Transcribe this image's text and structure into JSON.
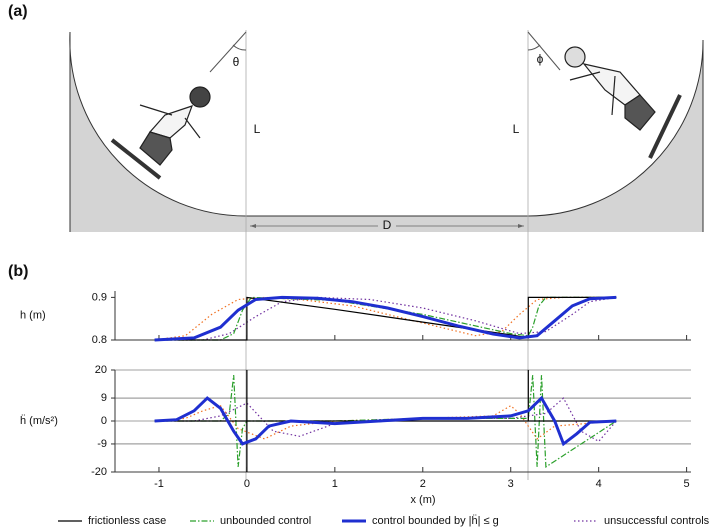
{
  "panel_labels": [
    "(a)",
    "(b)"
  ],
  "diagram": {
    "angle_left": "θ",
    "angle_right": "ϕ",
    "length_left": "L",
    "length_right": "L",
    "distance": "D"
  },
  "chart_data": [
    {
      "type": "line",
      "ylabel": "h (m)",
      "xlim": [
        -1.5,
        5.05
      ],
      "ylim": [
        0.8,
        0.915
      ],
      "yticks": [
        0.8,
        0.9
      ],
      "xticks": [
        -1,
        0,
        1,
        2,
        3,
        4,
        5
      ],
      "grid": false,
      "series": [
        {
          "color": "#f07020",
          "style": "dotted",
          "width": 1.2,
          "x": [
            -1.05,
            -0.7,
            -0.4,
            -0.1,
            0.2,
            0.6,
            1.2,
            2.0,
            2.6,
            2.9,
            3.1,
            3.3,
            3.6,
            4.2
          ],
          "values": [
            0.8,
            0.81,
            0.86,
            0.895,
            0.9,
            0.895,
            0.88,
            0.84,
            0.81,
            0.82,
            0.86,
            0.895,
            0.9,
            0.9
          ]
        },
        {
          "color": "#7030a0",
          "style": "dotted",
          "width": 1.2,
          "x": [
            -1.05,
            -0.5,
            -0.2,
            0.1,
            0.4,
            0.8,
            1.4,
            2.0,
            2.6,
            3.1,
            3.4,
            3.7,
            3.9,
            4.2
          ],
          "values": [
            0.8,
            0.8,
            0.815,
            0.855,
            0.89,
            0.9,
            0.895,
            0.875,
            0.845,
            0.815,
            0.82,
            0.86,
            0.89,
            0.9
          ]
        },
        {
          "color": "#2ca02c",
          "style": "dashdot",
          "width": 1.2,
          "x": [
            -1.05,
            -0.3,
            -0.15,
            -0.05,
            0.05,
            1.0,
            2.0,
            3.0,
            3.2,
            3.25,
            3.32,
            3.4,
            4.2
          ],
          "values": [
            0.8,
            0.8,
            0.815,
            0.87,
            0.9,
            0.893,
            0.86,
            0.815,
            0.81,
            0.83,
            0.88,
            0.9,
            0.9
          ]
        },
        {
          "color": "#000000",
          "style": "solid",
          "width": 1.2,
          "x": [
            -1.05,
            0,
            0,
            1,
            2,
            3,
            3.2,
            3.2,
            4.2
          ],
          "values": [
            0.8,
            0.8,
            0.9,
            0.872,
            0.842,
            0.812,
            0.805,
            0.9,
            0.9
          ]
        },
        {
          "color": "#1f2fd0",
          "style": "solid",
          "width": 3,
          "x": [
            -1.05,
            -0.6,
            -0.3,
            -0.1,
            0.1,
            0.4,
            0.8,
            1.2,
            1.6,
            2.0,
            2.4,
            2.8,
            3.1,
            3.3,
            3.5,
            3.7,
            3.9,
            4.2
          ],
          "values": [
            0.8,
            0.805,
            0.83,
            0.87,
            0.895,
            0.9,
            0.898,
            0.89,
            0.875,
            0.855,
            0.833,
            0.814,
            0.805,
            0.81,
            0.845,
            0.88,
            0.897,
            0.9
          ]
        }
      ]
    },
    {
      "type": "line",
      "ylabel": "ḧ (m/s²)",
      "xlabel": "x (m)",
      "xlim": [
        -1.5,
        5.05
      ],
      "ylim": [
        -20,
        20
      ],
      "yticks": [
        -20,
        -9,
        0,
        9,
        20
      ],
      "xticks": [
        -1,
        0,
        1,
        2,
        3,
        4,
        5
      ],
      "grid": true,
      "series": [
        {
          "color": "#f07020",
          "style": "dotted",
          "width": 1.2,
          "x": [
            -1.05,
            -0.7,
            -0.5,
            -0.3,
            -0.1,
            0.2,
            0.5,
            1.0,
            2.0,
            2.8,
            3.0,
            3.1,
            3.3,
            3.5,
            4.2
          ],
          "values": [
            0,
            1,
            4,
            6,
            -3,
            -7,
            -2,
            0,
            1,
            2,
            6,
            3,
            -7,
            -2,
            0
          ]
        },
        {
          "color": "#7030a0",
          "style": "dotted",
          "width": 1.2,
          "x": [
            -1.05,
            -0.6,
            -0.3,
            0,
            0.3,
            0.6,
            1.0,
            2.0,
            3.0,
            3.4,
            3.6,
            3.8,
            4.0,
            4.2
          ],
          "values": [
            0,
            0,
            2,
            7,
            -4,
            -6,
            -1,
            1,
            1,
            3,
            9,
            -4,
            -8,
            0
          ]
        },
        {
          "name": "unbounded control",
          "color": "#2ca02c",
          "style": "dashdot",
          "width": 1.2,
          "x": [
            -1.05,
            -0.3,
            -0.2,
            -0.15,
            -0.1,
            -0.05,
            0,
            0.05,
            1.0,
            2.0,
            3.0,
            3.2,
            3.25,
            3.3,
            3.35,
            3.4,
            4.2
          ],
          "values": [
            0,
            0,
            3,
            18,
            -18,
            -3,
            0,
            0,
            0,
            1,
            1,
            1,
            18,
            -18,
            18,
            -18,
            0
          ]
        },
        {
          "name": "frictionless case",
          "color": "#000000",
          "style": "solid",
          "width": 1.2,
          "x": [
            -1.05,
            0,
            0,
            0,
            0,
            3.2,
            3.2,
            3.2,
            4.2
          ],
          "values": [
            0,
            0,
            20,
            -20,
            0,
            0,
            20,
            0,
            0
          ]
        },
        {
          "name": "control bounded by |ḧ| ≤ g",
          "color": "#1f2fd0",
          "style": "solid",
          "width": 3,
          "x": [
            -1.05,
            -0.8,
            -0.6,
            -0.45,
            -0.3,
            -0.15,
            -0.05,
            0.1,
            0.25,
            0.5,
            1.0,
            1.5,
            2.0,
            2.5,
            3.0,
            3.2,
            3.35,
            3.5,
            3.6,
            3.75,
            3.9,
            4.2
          ],
          "values": [
            0,
            0.5,
            4,
            9,
            5,
            -4,
            -9,
            -7,
            -2,
            0,
            -1,
            0,
            1,
            1,
            2,
            4,
            9,
            0,
            -9,
            -5,
            -0.5,
            0
          ]
        },
        {
          "name": "unsuccessful controls",
          "color": "#7030a0",
          "style": "dotted",
          "width": 1.2,
          "x": [],
          "values": []
        }
      ]
    }
  ]
}
